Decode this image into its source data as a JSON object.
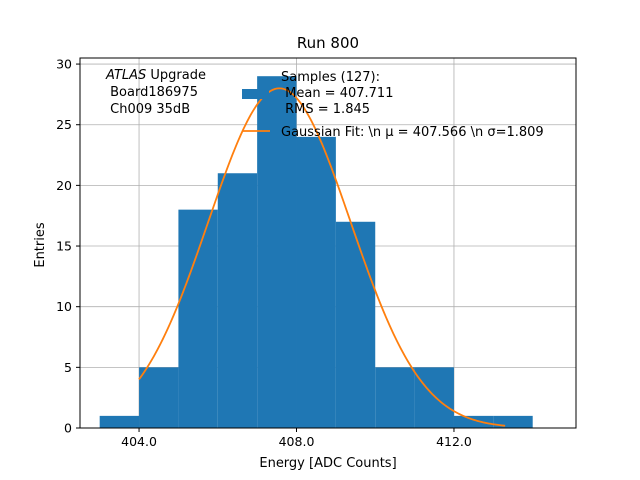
{
  "chart_data": {
    "type": "bar",
    "title": "Run 800",
    "xlabel": "Energy [ADC Counts]",
    "ylabel": "Entries",
    "xlim": [
      402.5,
      415.1
    ],
    "ylim": [
      0,
      30.5
    ],
    "xticks": [
      404.0,
      408.0,
      412.0
    ],
    "xtick_labels": [
      "404.0",
      "408.0",
      "412.0"
    ],
    "yticks": [
      0,
      5,
      10,
      15,
      20,
      25,
      30
    ],
    "ytick_labels": [
      "0",
      "5",
      "10",
      "15",
      "20",
      "25",
      "30"
    ],
    "grid": true,
    "bins": [
      {
        "x0": 403,
        "x1": 404,
        "count": 1
      },
      {
        "x0": 404,
        "x1": 405,
        "count": 5
      },
      {
        "x0": 405,
        "x1": 406,
        "count": 18
      },
      {
        "x0": 406,
        "x1": 407,
        "count": 21
      },
      {
        "x0": 407,
        "x1": 408,
        "count": 29
      },
      {
        "x0": 408,
        "x1": 409,
        "count": 24
      },
      {
        "x0": 409,
        "x1": 410,
        "count": 17
      },
      {
        "x0": 410,
        "x1": 411,
        "count": 5
      },
      {
        "x0": 411,
        "x1": 412,
        "count": 5
      },
      {
        "x0": 412,
        "x1": 413,
        "count": 1
      },
      {
        "x0": 413,
        "x1": 414,
        "count": 1
      }
    ],
    "fit": {
      "mu": 407.566,
      "sigma": 1.809,
      "peak": 28.0,
      "x_range": [
        404.0,
        413.3
      ]
    },
    "colors": {
      "bars": "#1f77b4",
      "fit": "#ff7f0e",
      "grid": "#b0b0b0"
    },
    "annotation": {
      "atlas": "ATLAS",
      "upgrade": " Upgrade",
      "line2": " Board186975",
      "line3": " Ch009 35dB"
    },
    "legend": {
      "location": "upper-center",
      "hist_label_lines": [
        "Samples (127):",
        " Mean = 407.711",
        " RMS = 1.845"
      ],
      "fit_label": "Gaussian Fit: \\n μ = 407.566 \\n σ=1.809"
    }
  }
}
